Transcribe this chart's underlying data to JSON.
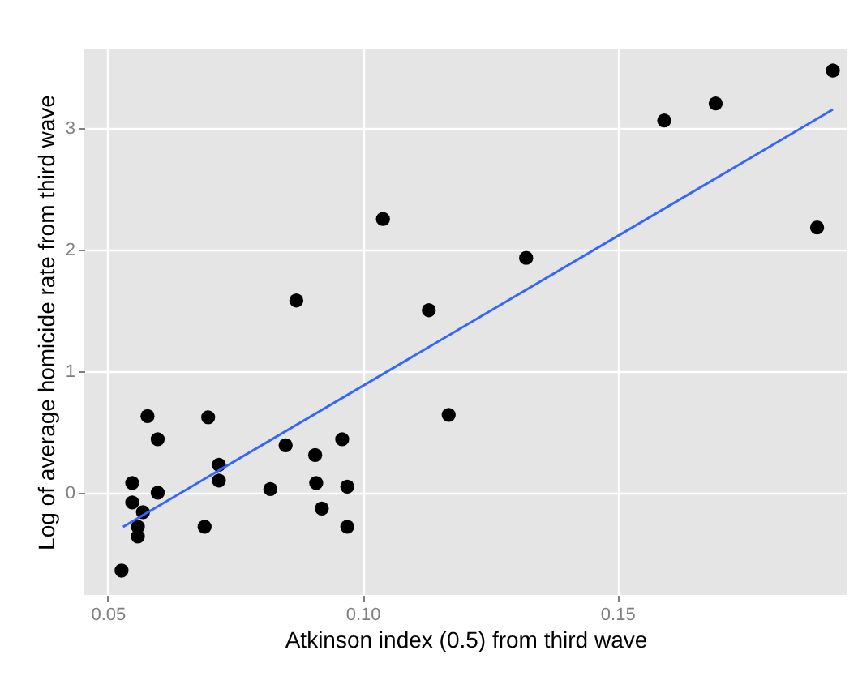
{
  "chart_data": {
    "type": "scatter",
    "xlabel": "Atkinson index (0.5) from third wave",
    "ylabel": "Log of average homicide rate from third wave",
    "xlim": [
      0.0454,
      0.195
    ],
    "xticks": [
      {
        "value": 0.05,
        "label": "0.05"
      },
      {
        "value": 0.1,
        "label": "0.10"
      },
      {
        "value": 0.15,
        "label": "0.15"
      }
    ],
    "ylim": [
      -0.84,
      3.65
    ],
    "yticks": [
      0,
      1,
      2,
      3
    ],
    "grid": true,
    "series": [
      {
        "marker": "circle",
        "color": "#000000",
        "x": [
          0.0527,
          0.0548,
          0.0548,
          0.0569,
          0.0559,
          0.0559,
          0.0578,
          0.0598,
          0.0598,
          0.0697,
          0.069,
          0.0718,
          0.0718,
          0.087,
          0.0819,
          0.0849,
          0.0907,
          0.0909,
          0.092,
          0.096,
          0.097,
          0.097,
          0.104,
          0.113,
          0.1169,
          0.1321,
          0.1592,
          0.1693,
          0.1923,
          0.1892
        ],
        "values": [
          -0.64,
          0.08,
          -0.08,
          -0.16,
          -0.28,
          -0.36,
          0.63,
          0.44,
          0.0,
          0.62,
          -0.28,
          0.23,
          0.1,
          1.58,
          0.03,
          0.39,
          0.31,
          0.08,
          -0.13,
          0.44,
          0.05,
          -0.28,
          2.25,
          1.5,
          0.64,
          1.93,
          3.06,
          3.2,
          3.47,
          2.18
        ]
      },
      {
        "type": "line",
        "color": "#3366ff",
        "x": [
          0.053,
          0.1923
        ],
        "values": [
          -0.28,
          3.15
        ]
      }
    ]
  }
}
